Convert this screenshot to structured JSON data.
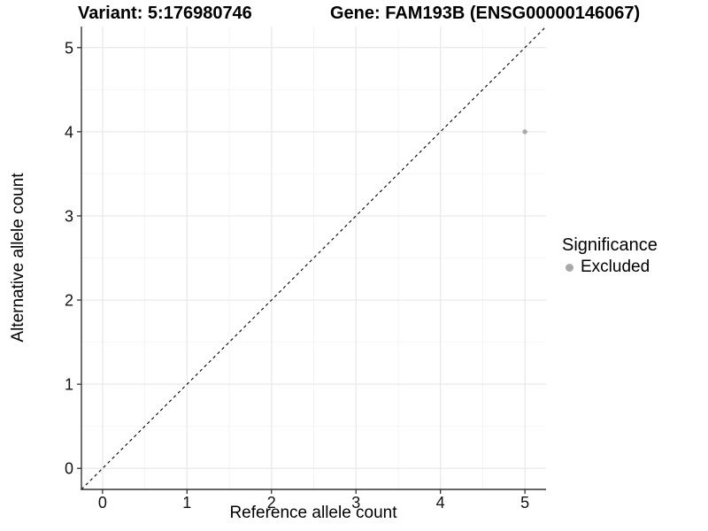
{
  "header": {
    "variant_title": "Variant: 5:176980746",
    "gene_title": "Gene: FAM193B (ENSG00000146067)"
  },
  "chart_data": {
    "type": "scatter",
    "xlabel": "Reference allele count",
    "ylabel": "Alternative allele count",
    "xlim": [
      -0.25,
      5.25
    ],
    "ylim": [
      -0.25,
      5.25
    ],
    "x_ticks": [
      0,
      1,
      2,
      3,
      4,
      5
    ],
    "x_tick_labels": [
      "0",
      "1",
      "2",
      "3",
      "4",
      "5"
    ],
    "y_ticks": [
      0,
      1,
      2,
      3,
      4,
      5
    ],
    "y_tick_labels": [
      "0",
      "1",
      "2",
      "3",
      "4",
      "5"
    ],
    "x_minor_ticks": [
      0.5,
      1.5,
      2.5,
      3.5,
      4.5
    ],
    "y_minor_ticks": [
      0.5,
      1.5,
      2.5,
      3.5,
      4.5
    ],
    "grid": "major+minor",
    "reference_line": {
      "kind": "abline",
      "slope": 1,
      "intercept": 0,
      "style": "dashed",
      "color": "#000000"
    },
    "series": [
      {
        "name": "Excluded",
        "color": "#a9a9a9",
        "points": [
          {
            "x": 5,
            "y": 4
          }
        ]
      }
    ],
    "legend": {
      "position": "right",
      "title": "Significance",
      "items": [
        {
          "label": "Excluded",
          "color": "#a9a9a9",
          "marker": "circle"
        }
      ]
    }
  },
  "colors": {
    "background": "#ffffff",
    "grid_major": "#e8e8e8",
    "grid_minor": "#f4f4f4",
    "axis": "#333333",
    "tick_text": "#111111",
    "title_text": "#000000"
  }
}
